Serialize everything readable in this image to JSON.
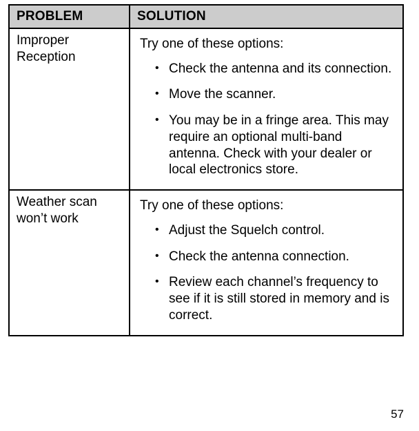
{
  "header": {
    "problem_label": "PROBLEM",
    "solution_label": "SOLUTION"
  },
  "rows": [
    {
      "problem": "Improper Reception",
      "intro": "Try one of these options:",
      "options": [
        "Check the antenna and its connection.",
        "Move the scanner.",
        "You may be in a fringe area. This may require an optional multi-band antenna. Check with your dealer or local electronics store."
      ]
    },
    {
      "problem": "Weather scan won’t work",
      "intro": "Try one of these options:",
      "options": [
        " Adjust the Squelch control.",
        "Check the antenna connection.",
        "Review each channel’s frequency to see if it is still stored in memory and is correct."
      ]
    }
  ],
  "page_number": "57",
  "colors": {
    "background": "#ffffff",
    "text": "#000000",
    "header_bg": "#cccccc",
    "border": "#000000"
  }
}
